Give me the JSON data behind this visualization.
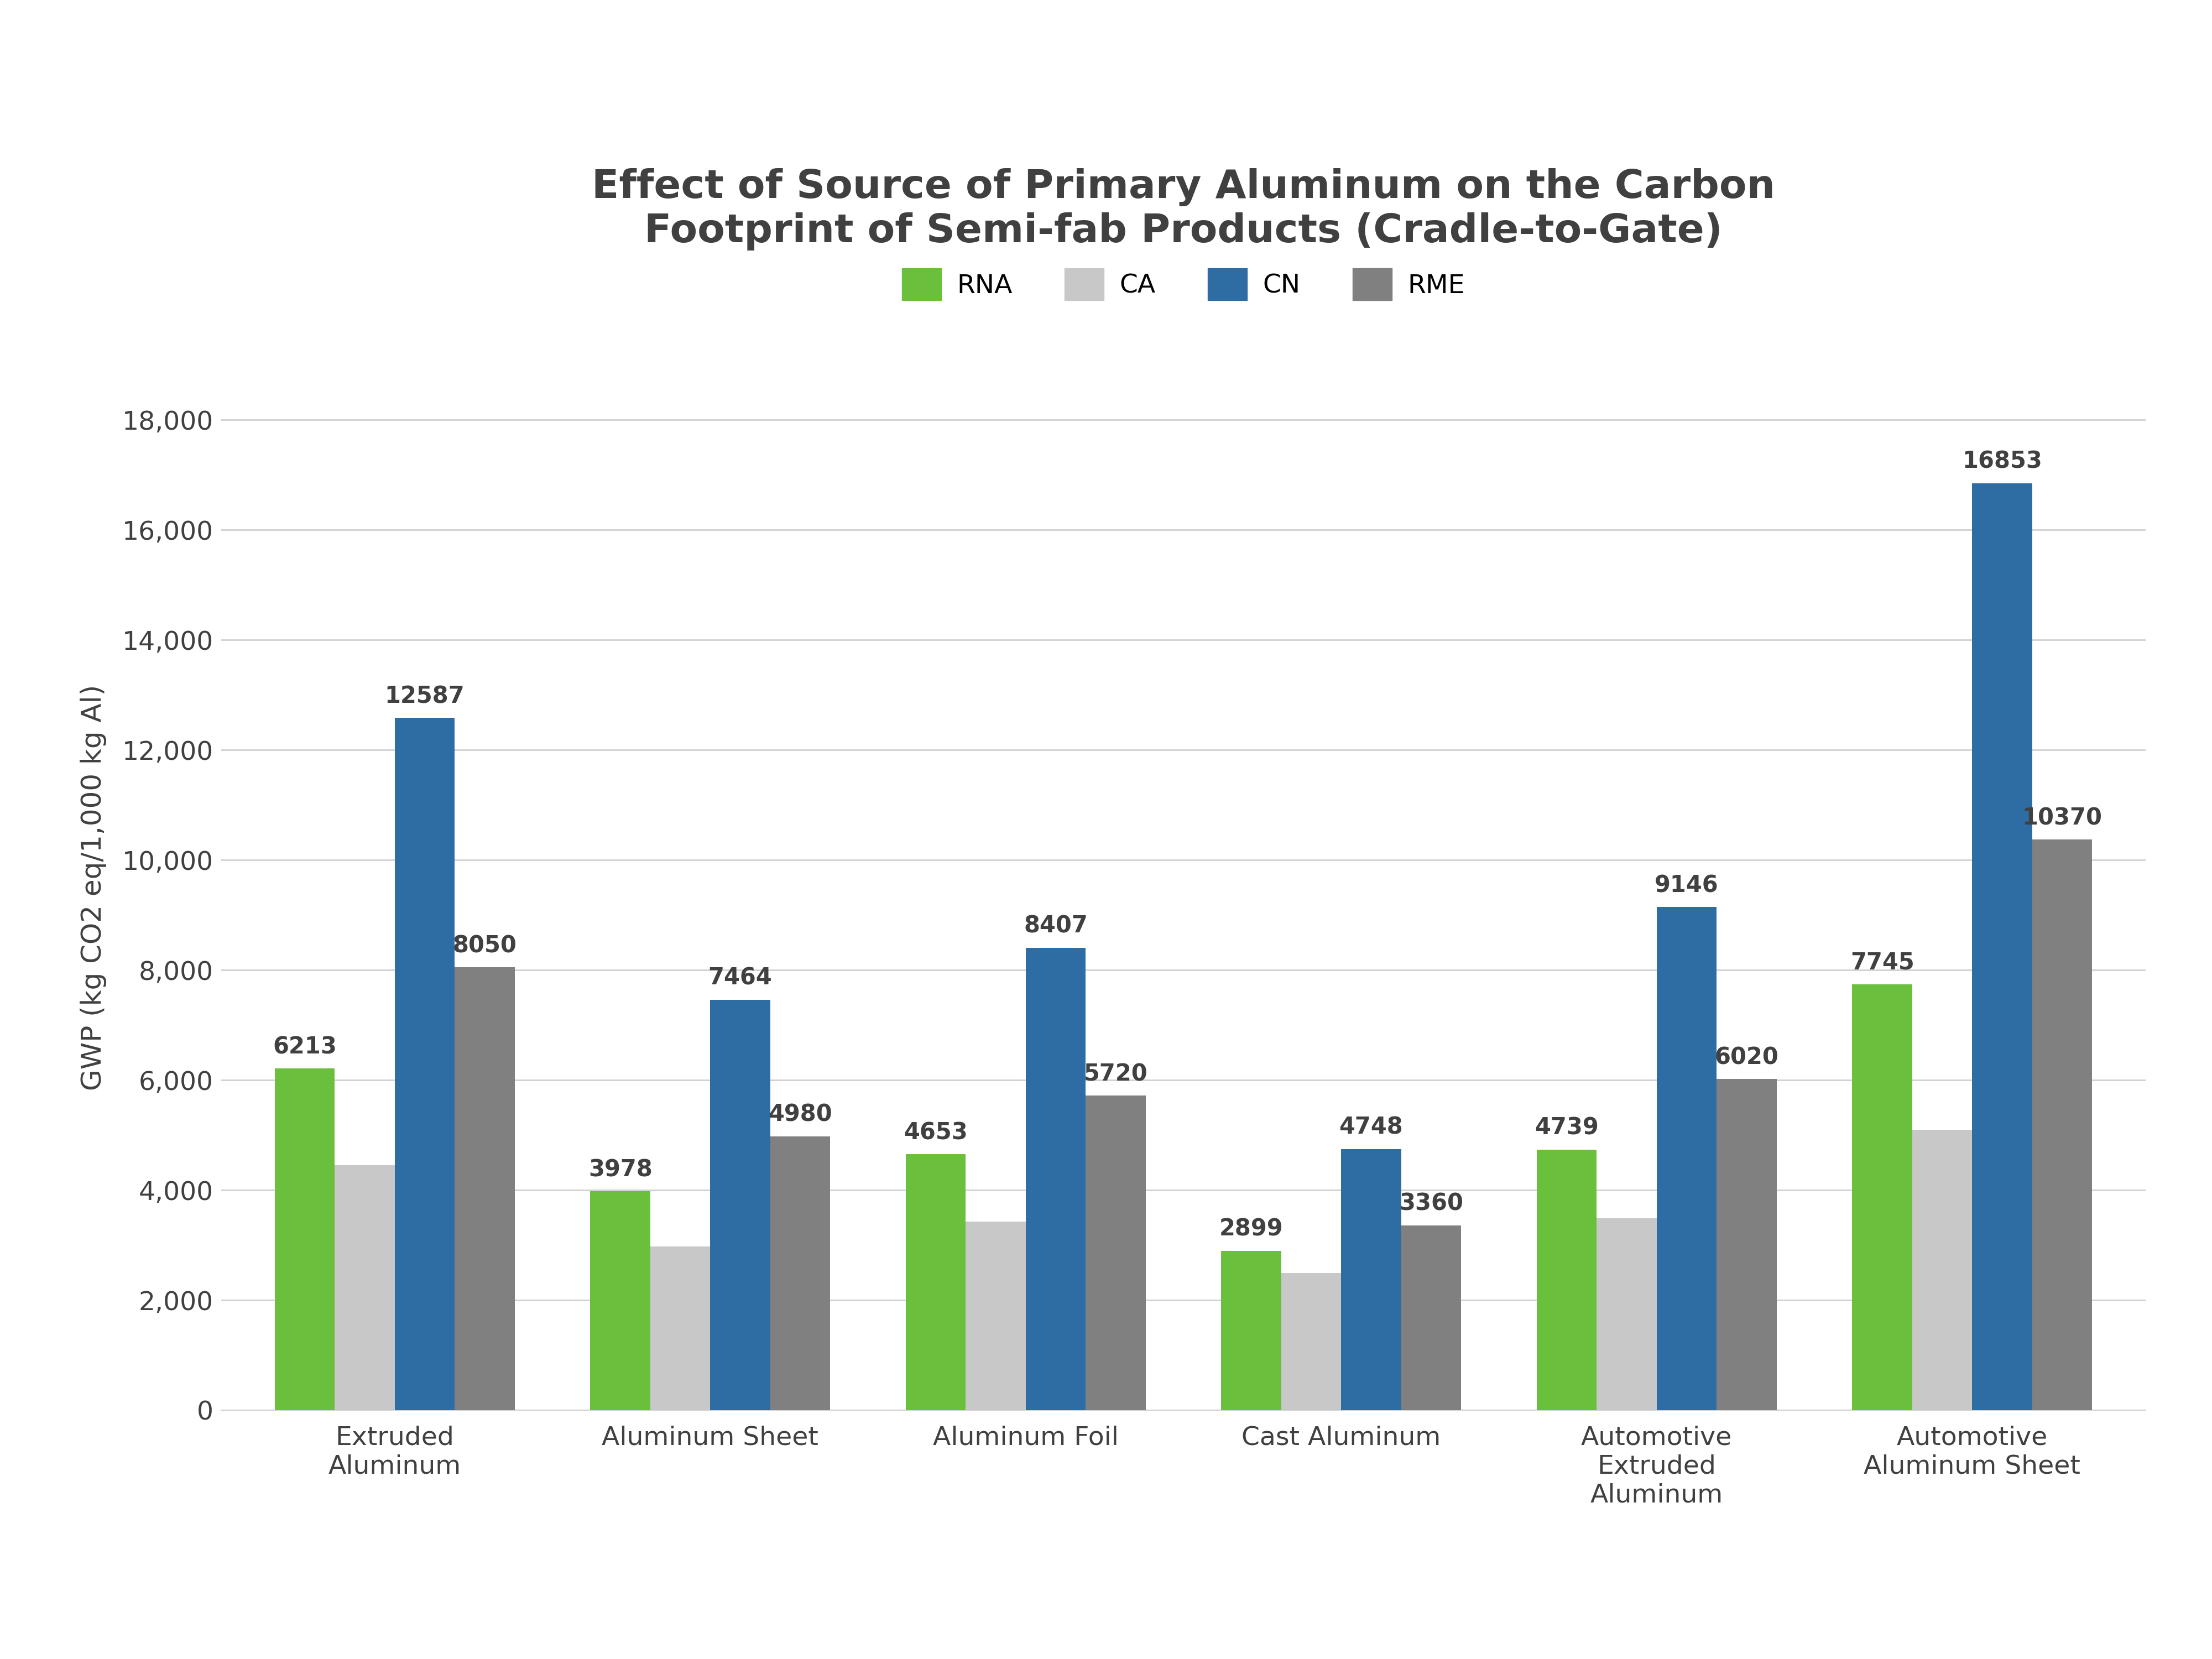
{
  "title": "Effect of Source of Primary Aluminum on the Carbon\nFootprint of Semi-fab Products (Cradle-to-Gate)",
  "ylabel": "GWP (kg CO2 eq/1,000 kg Al)",
  "categories": [
    "Extruded\nAluminum",
    "Aluminum Sheet",
    "Aluminum Foil",
    "Cast Aluminum",
    "Automotive\nExtruded\nAluminum",
    "Automotive\nAluminum Sheet"
  ],
  "series": {
    "RNA": {
      "values": [
        6213,
        3978,
        4653,
        2899,
        4739,
        7745
      ],
      "color": "#6ABF3C"
    },
    "CA": {
      "values": [
        4450,
        2980,
        3430,
        2490,
        3490,
        5100
      ],
      "color": "#C8C8C8"
    },
    "CN": {
      "values": [
        12587,
        7464,
        8407,
        4748,
        9146,
        16853
      ],
      "color": "#2E6DA4"
    },
    "RME": {
      "values": [
        8050,
        4980,
        5720,
        3360,
        6020,
        10370
      ],
      "color": "#808080"
    }
  },
  "ylim": [
    0,
    19000
  ],
  "yticks": [
    0,
    2000,
    4000,
    6000,
    8000,
    10000,
    12000,
    14000,
    16000,
    18000
  ],
  "ytick_labels": [
    "0",
    "2,000",
    "4,000",
    "6,000",
    "8,000",
    "10,000",
    "12,000",
    "14,000",
    "16,000",
    "18,000"
  ],
  "background_color": "#FFFFFF",
  "title_color": "#404040",
  "axis_color": "#404040",
  "grid_color": "#D0D0D0",
  "bar_width": 0.19,
  "title_fontsize": 52,
  "label_fontsize": 36,
  "tick_fontsize": 34,
  "legend_fontsize": 34,
  "annotation_fontsize": 30,
  "annotate_names": [
    "RNA",
    "CN",
    "RME"
  ]
}
